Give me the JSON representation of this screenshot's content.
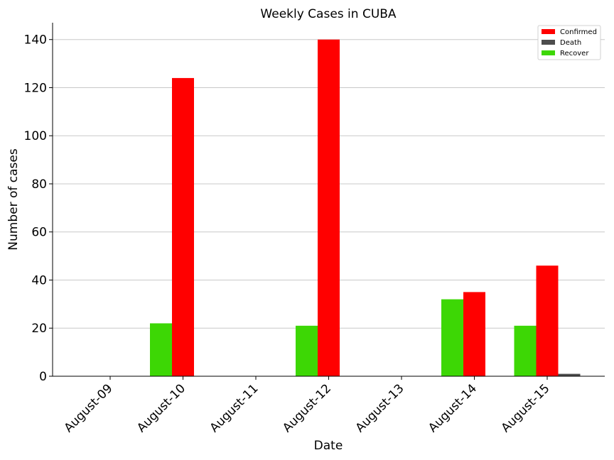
{
  "chart_data": {
    "type": "bar",
    "title": "Weekly Cases in CUBA",
    "xlabel": "Date",
    "ylabel": "Number of cases",
    "categories": [
      "August-09",
      "August-10",
      "August-11",
      "August-12",
      "August-13",
      "August-14",
      "August-15"
    ],
    "series": [
      {
        "name": "Recover",
        "color": "#3dd705",
        "values": [
          0,
          22,
          0,
          21,
          0,
          32,
          21
        ]
      },
      {
        "name": "Confirmed",
        "color": "#ff0000",
        "values": [
          0,
          124,
          0,
          140,
          0,
          35,
          46
        ]
      },
      {
        "name": "Death",
        "color": "#4d4d4d",
        "values": [
          0,
          0,
          0,
          0,
          0,
          0,
          1
        ]
      }
    ],
    "legend_order": [
      "Confirmed",
      "Death",
      "Recover"
    ],
    "ylim": [
      0,
      147
    ],
    "yticks": [
      0,
      20,
      40,
      60,
      80,
      100,
      120,
      140
    ],
    "grid": "horizontal",
    "legend_position": "top-right"
  }
}
